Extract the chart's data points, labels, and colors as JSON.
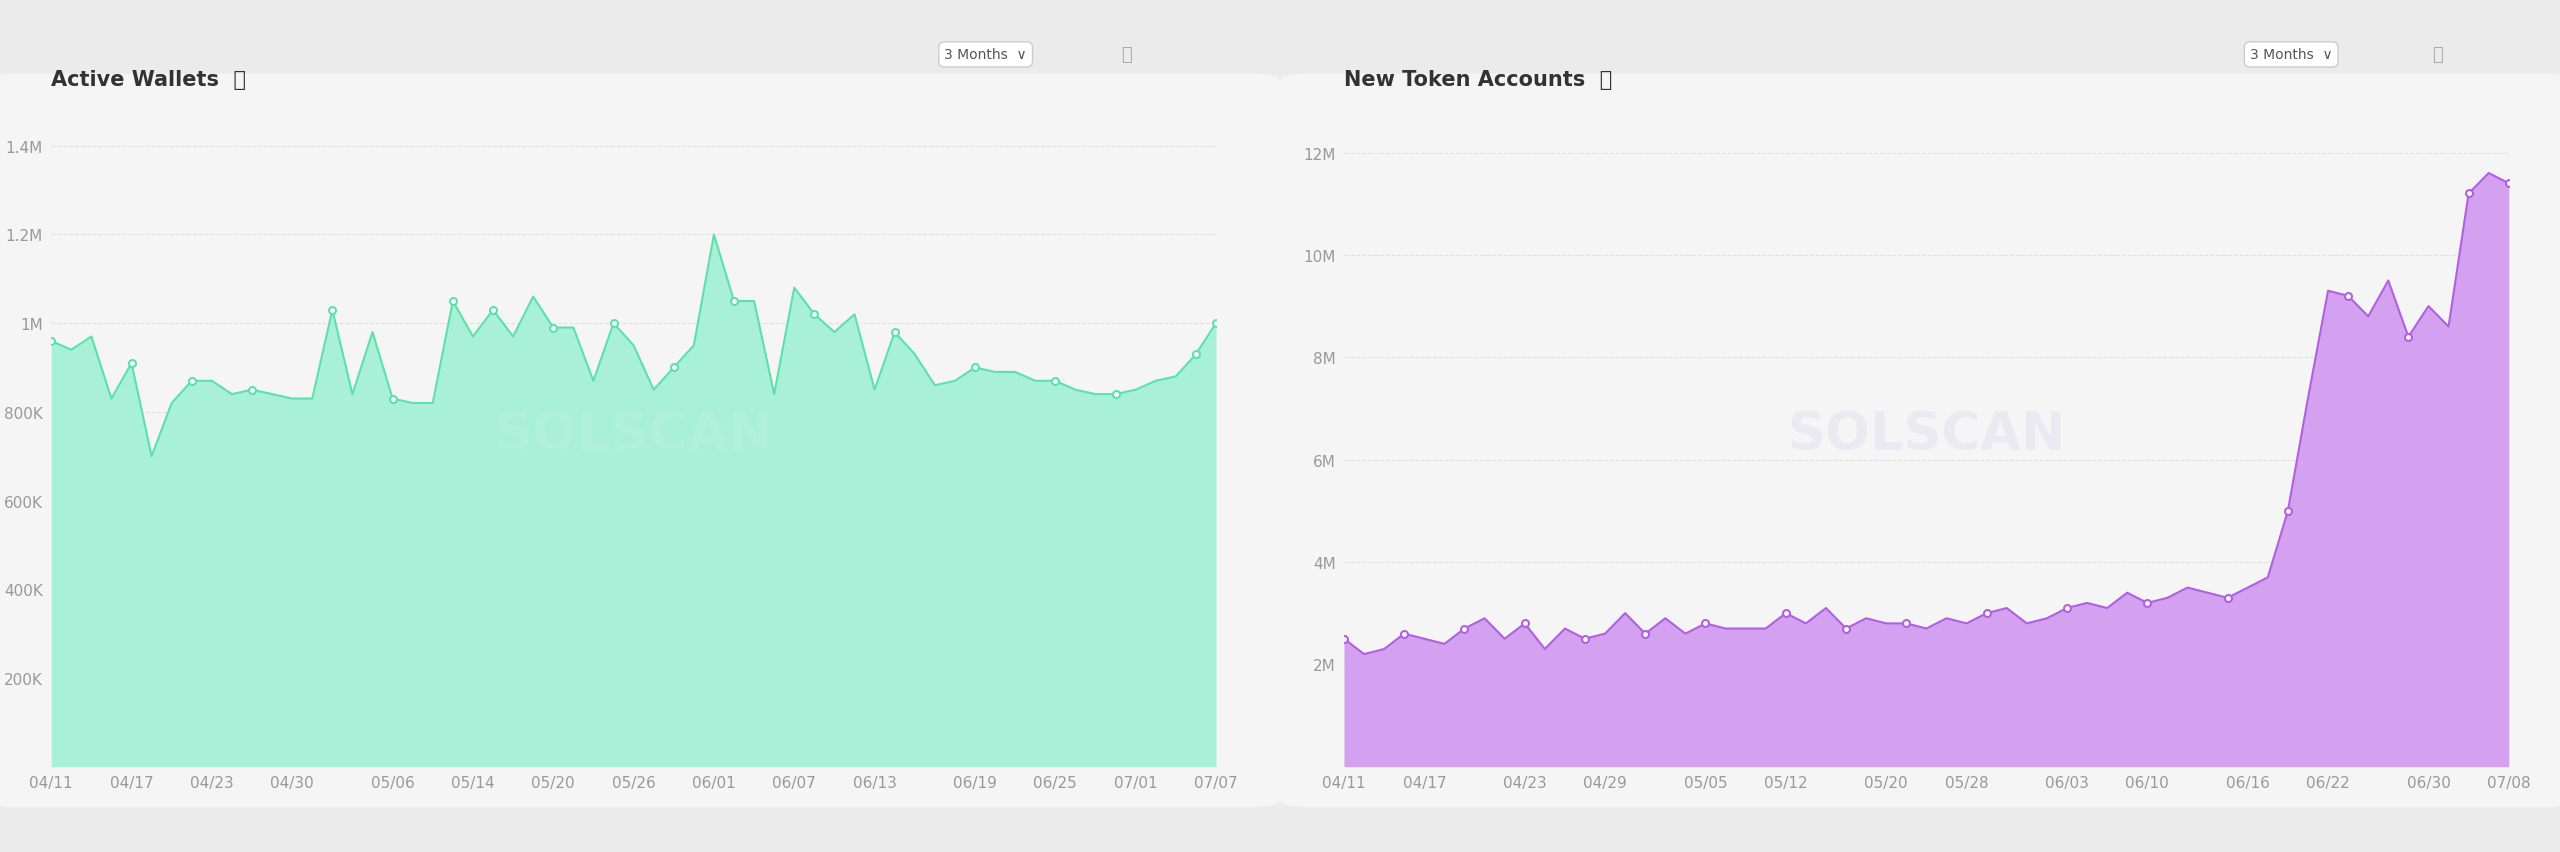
{
  "chart1": {
    "title": "Active Wallets",
    "subtitle": "3 Months",
    "x_labels": [
      "04/11",
      "04/17",
      "04/23",
      "04/30",
      "05/06",
      "05/14",
      "05/20",
      "05/26",
      "06/01",
      "06/07",
      "06/13",
      "06/19",
      "06/25",
      "07/01",
      "07/07"
    ],
    "y_ticks": [
      200000,
      400000,
      600000,
      800000,
      1000000,
      1200000,
      1400000
    ],
    "y_labels": [
      "200K",
      "400K",
      "600K",
      "800K",
      "1M",
      "1.2M",
      "1.4M"
    ],
    "ylim": [
      0,
      1500000
    ],
    "fill_color": "#a8f0d8",
    "line_color": "#5de0b0",
    "dot_color": "#ffffff",
    "dot_edgecolor": "#5de0b0",
    "values": [
      960000,
      940000,
      970000,
      830000,
      910000,
      700000,
      820000,
      870000,
      870000,
      840000,
      850000,
      840000,
      830000,
      830000,
      1030000,
      840000,
      980000,
      830000,
      820000,
      820000,
      1050000,
      970000,
      1030000,
      970000,
      1060000,
      990000,
      990000,
      870000,
      1000000,
      950000,
      850000,
      900000,
      950000,
      1200000,
      1050000,
      1050000,
      840000,
      1080000,
      1020000,
      980000,
      1020000,
      850000,
      980000,
      930000,
      860000,
      870000,
      900000,
      890000,
      890000,
      870000,
      870000,
      850000,
      840000,
      840000,
      850000,
      870000,
      880000,
      930000,
      1000000
    ],
    "watermark": "SOLSCAN",
    "background": "#f5f5f5"
  },
  "chart2": {
    "title": "New Token Accounts",
    "subtitle": "3 Months",
    "x_labels": [
      "04/11",
      "04/17",
      "04/23",
      "04/29",
      "05/05",
      "05/12",
      "05/20",
      "05/28",
      "06/03",
      "06/10",
      "06/16",
      "06/22",
      "06/30",
      "07/08"
    ],
    "y_ticks": [
      2000000,
      4000000,
      6000000,
      8000000,
      10000000,
      12000000
    ],
    "y_labels": [
      "2M",
      "4M",
      "6M",
      "8M",
      "10M",
      "12M"
    ],
    "ylim": [
      0,
      13000000
    ],
    "fill_color": "#d4a0f0",
    "line_color": "#b060e0",
    "dot_color": "#ffffff",
    "dot_edgecolor": "#b060e0",
    "values": [
      2500000,
      2200000,
      2300000,
      2600000,
      2500000,
      2400000,
      2700000,
      2900000,
      2500000,
      2800000,
      2300000,
      2700000,
      2500000,
      2600000,
      3000000,
      2600000,
      2900000,
      2600000,
      2800000,
      2700000,
      2700000,
      2700000,
      3000000,
      2800000,
      3100000,
      2700000,
      2900000,
      2800000,
      2800000,
      2700000,
      2900000,
      2800000,
      3000000,
      3100000,
      2800000,
      2900000,
      3100000,
      3200000,
      3100000,
      3400000,
      3200000,
      3300000,
      3500000,
      3400000,
      3300000,
      3500000,
      3700000,
      5000000,
      7200000,
      9300000,
      9200000,
      8800000,
      9500000,
      8400000,
      9000000,
      8600000,
      11200000,
      11600000,
      11400000
    ],
    "watermark": "SOLSCAN",
    "background": "#f5f5f5"
  },
  "figure_bg": "#ebebeb",
  "panel_bg": "#f5f5f5",
  "grid_color": "#dddddd",
  "tick_color": "#999999",
  "title_color": "#333333",
  "title_fontsize": 15,
  "tick_fontsize": 11
}
